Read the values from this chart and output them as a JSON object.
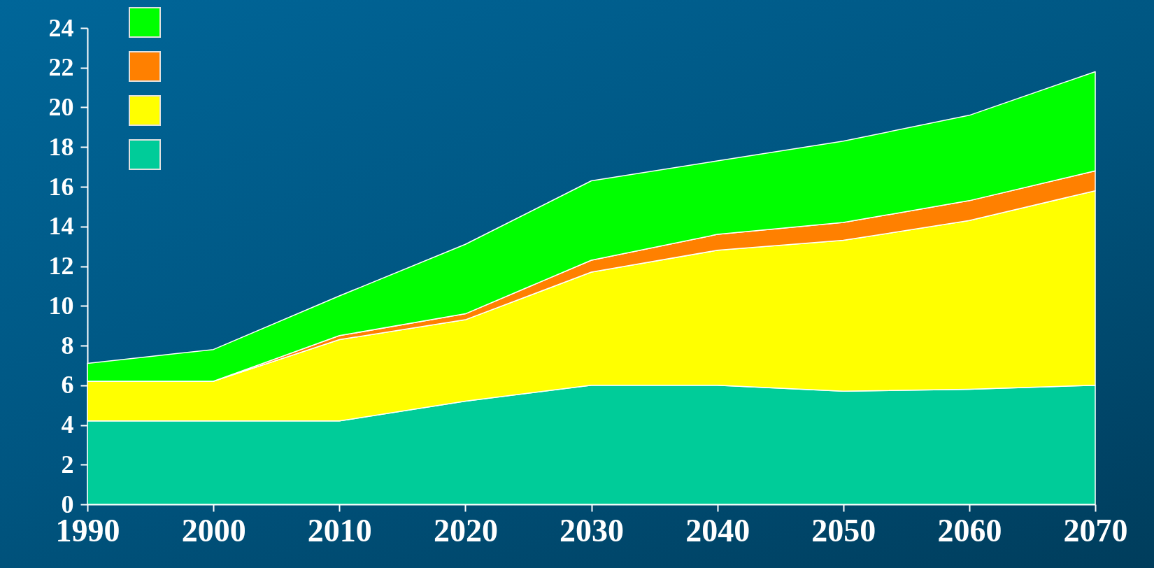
{
  "chart_data": {
    "type": "area",
    "stacked": true,
    "x": [
      1990,
      2000,
      2010,
      2020,
      2030,
      2040,
      2050,
      2060,
      2070
    ],
    "series": [
      {
        "color": "#00cc99",
        "values": [
          4.2,
          4.2,
          4.2,
          5.2,
          6.0,
          6.0,
          5.7,
          5.8,
          6.0
        ]
      },
      {
        "color": "#ffff00",
        "values": [
          2.0,
          2.0,
          4.1,
          4.1,
          5.7,
          6.8,
          7.6,
          8.5,
          9.8
        ]
      },
      {
        "color": "#ff8000",
        "values": [
          0,
          0,
          0.2,
          0.3,
          0.6,
          0.8,
          0.9,
          1.0,
          1.0
        ]
      },
      {
        "color": "#00ff00",
        "values": [
          0.9,
          1.6,
          2.0,
          3.5,
          4.0,
          3.7,
          4.1,
          4.3,
          5.0
        ]
      }
    ],
    "xlim": [
      1990,
      2070
    ],
    "xticks": [
      1990,
      2000,
      2010,
      2020,
      2030,
      2040,
      2050,
      2060,
      2070
    ],
    "ylim": [
      0,
      24
    ],
    "yticks": [
      0,
      2,
      4,
      6,
      8,
      10,
      12,
      14,
      16,
      18,
      20,
      22,
      24
    ],
    "grid": false
  }
}
